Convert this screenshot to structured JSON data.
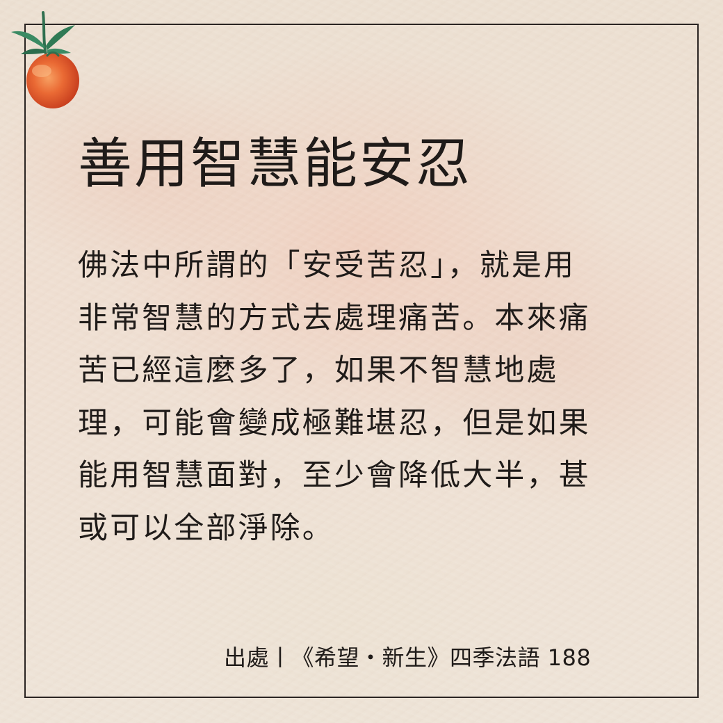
{
  "card": {
    "title": "善用智慧能安忍",
    "body_lines": [
      "佛法中所謂的「安受苦忍」，就是用",
      "非常智慧的方式去處理痛苦。本來痛",
      "苦已經這麼多了，如果不智慧地處",
      "理，可能會變成極難堪忍，但是如果",
      "能用智慧面對，至少會降低大半，甚",
      "或可以全部淨除。"
    ],
    "source": "出處丨《希望・新生》四季法語 188"
  },
  "decoration": {
    "icon": "tomato-icon",
    "frame_color": "#2a2422",
    "background_color": "#ece0d2",
    "tomato_color": "#e2562a",
    "leaf_color": "#2f7a55"
  }
}
